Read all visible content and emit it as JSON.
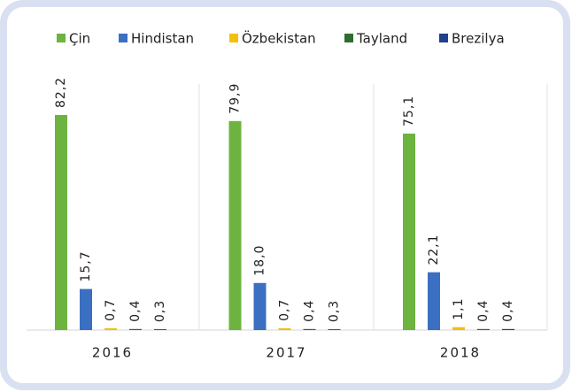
{
  "chart_data": {
    "type": "bar",
    "categories": [
      "2016",
      "2017",
      "2018"
    ],
    "series": [
      {
        "name": "Çin",
        "color": "#6cb33f",
        "values": [
          82.2,
          79.9,
          75.1
        ],
        "value_labels": [
          "82,2",
          "79,9",
          "75,1"
        ]
      },
      {
        "name": "Hindistan",
        "color": "#3b6fc1",
        "values": [
          15.7,
          18.0,
          22.1
        ],
        "value_labels": [
          "15,7",
          "18,0",
          "22,1"
        ]
      },
      {
        "name": "Özbekistan",
        "color": "#f4c00a",
        "values": [
          0.7,
          0.7,
          1.1
        ],
        "value_labels": [
          "0,7",
          "0,7",
          "1,1"
        ]
      },
      {
        "name": "Tayland",
        "color": "#2f6d2f",
        "values": [
          0.4,
          0.4,
          0.4
        ],
        "value_labels": [
          "0,4",
          "0,4",
          "0,4"
        ]
      },
      {
        "name": "Brezilya",
        "color": "#203f8c",
        "values": [
          0.3,
          0.3,
          0.4
        ],
        "value_labels": [
          "0,3",
          "0,3",
          "0,4"
        ]
      }
    ]
  }
}
